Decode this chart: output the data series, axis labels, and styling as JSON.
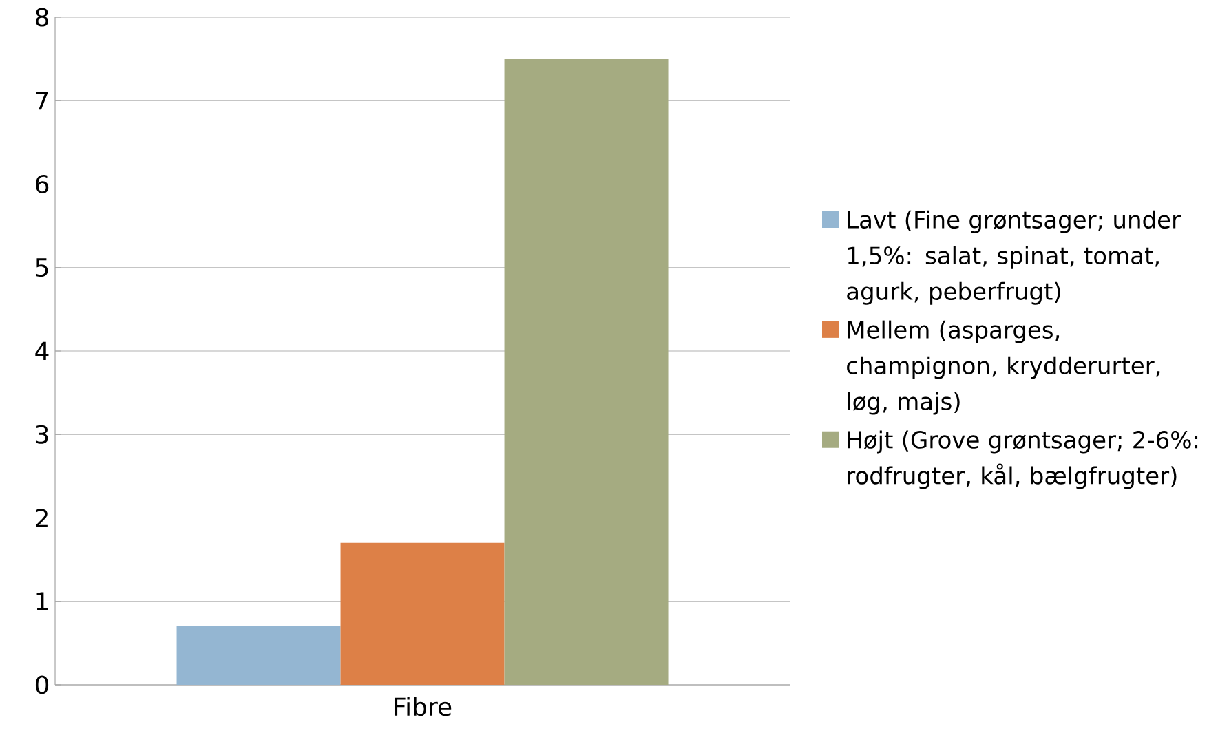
{
  "chart_data": {
    "type": "bar",
    "categories": [
      "Fibre"
    ],
    "series": [
      {
        "name": "Lavt (Fine grøntsager; under 1,5%: salat, spinat, tomat, agurk, peberfrugt)",
        "color": "#94b6d2",
        "values": [
          0.7
        ]
      },
      {
        "name": "Mellem (asparges, champignon, krydderurter, løg, majs)",
        "color": "#dd8047",
        "values": [
          1.7
        ]
      },
      {
        "name": "Højt (Grove grøntsager; 2-6%: rodfrugter, kål, bælgfrugter)",
        "color": "#a5ab81",
        "values": [
          7.5
        ]
      }
    ],
    "ylim": [
      0,
      8
    ],
    "yticks": [
      0,
      1,
      2,
      3,
      4,
      5,
      6,
      7,
      8
    ],
    "grid": "y",
    "legend": "right"
  }
}
